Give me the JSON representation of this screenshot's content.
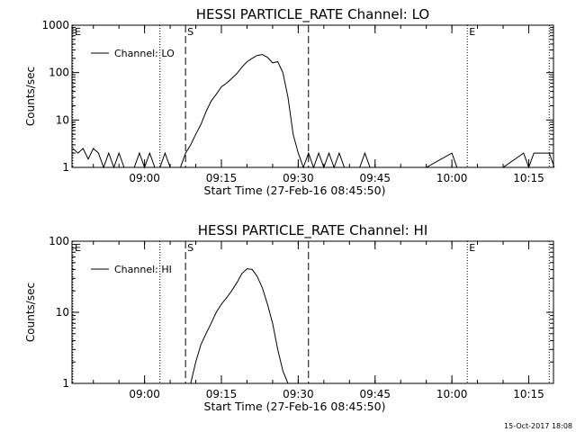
{
  "footer": {
    "timestamp": "15-Oct-2017 18:08"
  },
  "chart_data": [
    {
      "type": "line",
      "title": "HESSI PARTICLE_RATE Channel: LO",
      "xlabel": "Start Time (27-Feb-16 08:45:50)",
      "ylabel": "Counts/sec",
      "yscale": "log",
      "ylim": [
        1,
        1000
      ],
      "xlim_minutes_after_start": [
        0,
        94
      ],
      "x_ticks": [
        "09:00",
        "09:15",
        "09:30",
        "09:45",
        "10:00",
        "10:15"
      ],
      "y_ticks": [
        "1",
        "10",
        "100",
        "1000"
      ],
      "legend": {
        "position": "top-left",
        "entries": [
          "Channel: LO"
        ]
      },
      "markers": [
        {
          "label": "E",
          "time": "08:46",
          "style": "dotted"
        },
        {
          "label": "",
          "time": "09:03",
          "style": "dotted"
        },
        {
          "label": "S",
          "time": "09:08",
          "style": "dashed"
        },
        {
          "label": "",
          "time": "09:32",
          "style": "dashed"
        },
        {
          "label": "E",
          "time": "10:03",
          "style": "dotted"
        },
        {
          "label": "",
          "time": "10:19",
          "style": "dotted"
        }
      ],
      "series": [
        {
          "name": "Channel: LO",
          "points": [
            [
              "08:46",
              2.5
            ],
            [
              "08:47",
              2
            ],
            [
              "08:48",
              2.5
            ],
            [
              "08:49",
              1.5
            ],
            [
              "08:50",
              2.5
            ],
            [
              "08:51",
              2
            ],
            [
              "08:52",
              1
            ],
            [
              "08:53",
              2
            ],
            [
              "08:54",
              1
            ],
            [
              "08:55",
              2
            ],
            [
              "08:56",
              1
            ],
            [
              "08:57",
              1
            ],
            [
              "08:58",
              1
            ],
            [
              "08:59",
              2
            ],
            [
              "09:00",
              1
            ],
            [
              "09:01",
              2
            ],
            [
              "09:02",
              1
            ],
            [
              "09:03",
              1
            ],
            [
              "09:04",
              2
            ],
            [
              "09:05",
              1
            ],
            [
              "09:06",
              1
            ],
            [
              "09:07",
              1
            ],
            [
              "09:08",
              2
            ],
            [
              "09:09",
              3
            ],
            [
              "09:10",
              5
            ],
            [
              "09:11",
              8
            ],
            [
              "09:12",
              15
            ],
            [
              "09:13",
              25
            ],
            [
              "09:14",
              35
            ],
            [
              "09:15",
              50
            ],
            [
              "09:16",
              60
            ],
            [
              "09:17",
              75
            ],
            [
              "09:18",
              95
            ],
            [
              "09:19",
              130
            ],
            [
              "09:20",
              170
            ],
            [
              "09:21",
              200
            ],
            [
              "09:22",
              230
            ],
            [
              "09:23",
              240
            ],
            [
              "09:24",
              210
            ],
            [
              "09:25",
              160
            ],
            [
              "09:26",
              170
            ],
            [
              "09:27",
              100
            ],
            [
              "09:28",
              30
            ],
            [
              "09:29",
              5
            ],
            [
              "09:30",
              2
            ],
            [
              "09:31",
              1
            ],
            [
              "09:32",
              2
            ],
            [
              "09:33",
              1
            ],
            [
              "09:34",
              2
            ],
            [
              "09:35",
              1
            ],
            [
              "09:36",
              2
            ],
            [
              "09:37",
              1
            ],
            [
              "09:38",
              2
            ],
            [
              "09:39",
              1
            ],
            [
              "09:40",
              1
            ],
            [
              "09:41",
              1
            ],
            [
              "09:42",
              1
            ],
            [
              "09:43",
              2
            ],
            [
              "09:44",
              1
            ],
            [
              "09:45",
              1
            ],
            [
              "09:50",
              1
            ],
            [
              "09:55",
              1
            ],
            [
              "10:00",
              2
            ],
            [
              "10:01",
              1
            ],
            [
              "10:05",
              1
            ],
            [
              "10:10",
              1
            ],
            [
              "10:14",
              2
            ],
            [
              "10:15",
              1
            ],
            [
              "10:16",
              2
            ],
            [
              "10:17",
              2
            ],
            [
              "10:18",
              2
            ],
            [
              "10:19",
              2
            ],
            [
              "10:20",
              1
            ]
          ]
        }
      ]
    },
    {
      "type": "line",
      "title": "HESSI PARTICLE_RATE Channel: HI",
      "xlabel": "Start Time (27-Feb-16 08:45:50)",
      "ylabel": "Counts/sec",
      "yscale": "log",
      "ylim": [
        1,
        100
      ],
      "xlim_minutes_after_start": [
        0,
        94
      ],
      "x_ticks": [
        "09:00",
        "09:15",
        "09:30",
        "09:45",
        "10:00",
        "10:15"
      ],
      "y_ticks": [
        "1",
        "10",
        "100"
      ],
      "legend": {
        "position": "top-left",
        "entries": [
          "Channel: HI"
        ]
      },
      "markers": [
        {
          "label": "E",
          "time": "08:46",
          "style": "dotted"
        },
        {
          "label": "",
          "time": "09:03",
          "style": "dotted"
        },
        {
          "label": "S",
          "time": "09:08",
          "style": "dashed"
        },
        {
          "label": "",
          "time": "09:32",
          "style": "dashed"
        },
        {
          "label": "E",
          "time": "10:03",
          "style": "dotted"
        },
        {
          "label": "",
          "time": "10:19",
          "style": "dotted"
        }
      ],
      "series": [
        {
          "name": "Channel: HI",
          "points": [
            [
              "09:09",
              1
            ],
            [
              "09:10",
              2
            ],
            [
              "09:11",
              3.5
            ],
            [
              "09:12",
              5
            ],
            [
              "09:13",
              7
            ],
            [
              "09:14",
              10
            ],
            [
              "09:15",
              13
            ],
            [
              "09:16",
              16
            ],
            [
              "09:17",
              20
            ],
            [
              "09:18",
              26
            ],
            [
              "09:19",
              35
            ],
            [
              "09:20",
              41
            ],
            [
              "09:21",
              40
            ],
            [
              "09:22",
              32
            ],
            [
              "09:23",
              22
            ],
            [
              "09:24",
              13
            ],
            [
              "09:25",
              7
            ],
            [
              "09:26",
              3
            ],
            [
              "09:27",
              1.5
            ],
            [
              "09:28",
              1
            ]
          ]
        }
      ]
    }
  ]
}
